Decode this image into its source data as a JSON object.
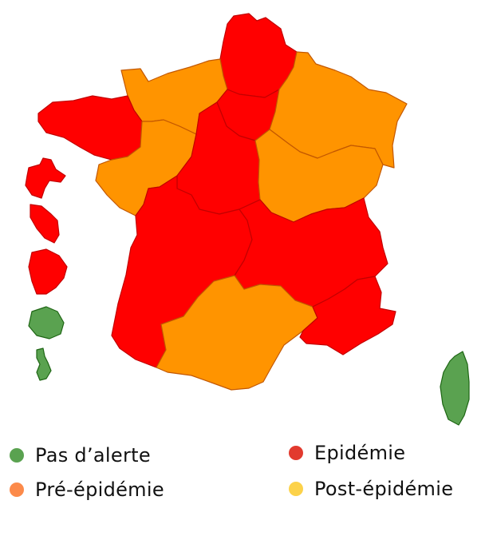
{
  "map": {
    "colors": {
      "epidemie": "#ff0000",
      "pre_epidemie": "#ff9400",
      "pas_alerte": "#5aa250",
      "post_epidemie": "#ffd54f"
    },
    "regions": [
      {
        "name": "Hauts-de-France",
        "status": "epidemie"
      },
      {
        "name": "Normandie",
        "status": "pre_epidemie"
      },
      {
        "name": "Île-de-France",
        "status": "epidemie"
      },
      {
        "name": "Grand Est",
        "status": "pre_epidemie"
      },
      {
        "name": "Bretagne",
        "status": "epidemie"
      },
      {
        "name": "Pays de la Loire",
        "status": "pre_epidemie"
      },
      {
        "name": "Centre-Val de Loire",
        "status": "epidemie"
      },
      {
        "name": "Bourgogne-Franche-Comté",
        "status": "pre_epidemie"
      },
      {
        "name": "Nouvelle-Aquitaine",
        "status": "epidemie"
      },
      {
        "name": "Auvergne-Rhône-Alpes",
        "status": "epidemie"
      },
      {
        "name": "Occitanie",
        "status": "pre_epidemie"
      },
      {
        "name": "Provence-Alpes-Côte d'Azur",
        "status": "epidemie"
      },
      {
        "name": "Corse",
        "status": "pas_alerte"
      },
      {
        "name": "Guadeloupe",
        "status": "epidemie"
      },
      {
        "name": "Martinique",
        "status": "epidemie"
      },
      {
        "name": "Guyane",
        "status": "epidemie"
      },
      {
        "name": "La Réunion",
        "status": "pas_alerte"
      },
      {
        "name": "Mayotte",
        "status": "pas_alerte"
      }
    ]
  },
  "legend": [
    {
      "label": "Pas d’alerte",
      "color": "#5aa250"
    },
    {
      "label": "Pré-épidémie",
      "color": "#fc8a4a"
    },
    {
      "label": "Epidémie",
      "color": "#e23a2e"
    },
    {
      "label": "Post-épidémie",
      "color": "#fcd24a"
    }
  ]
}
